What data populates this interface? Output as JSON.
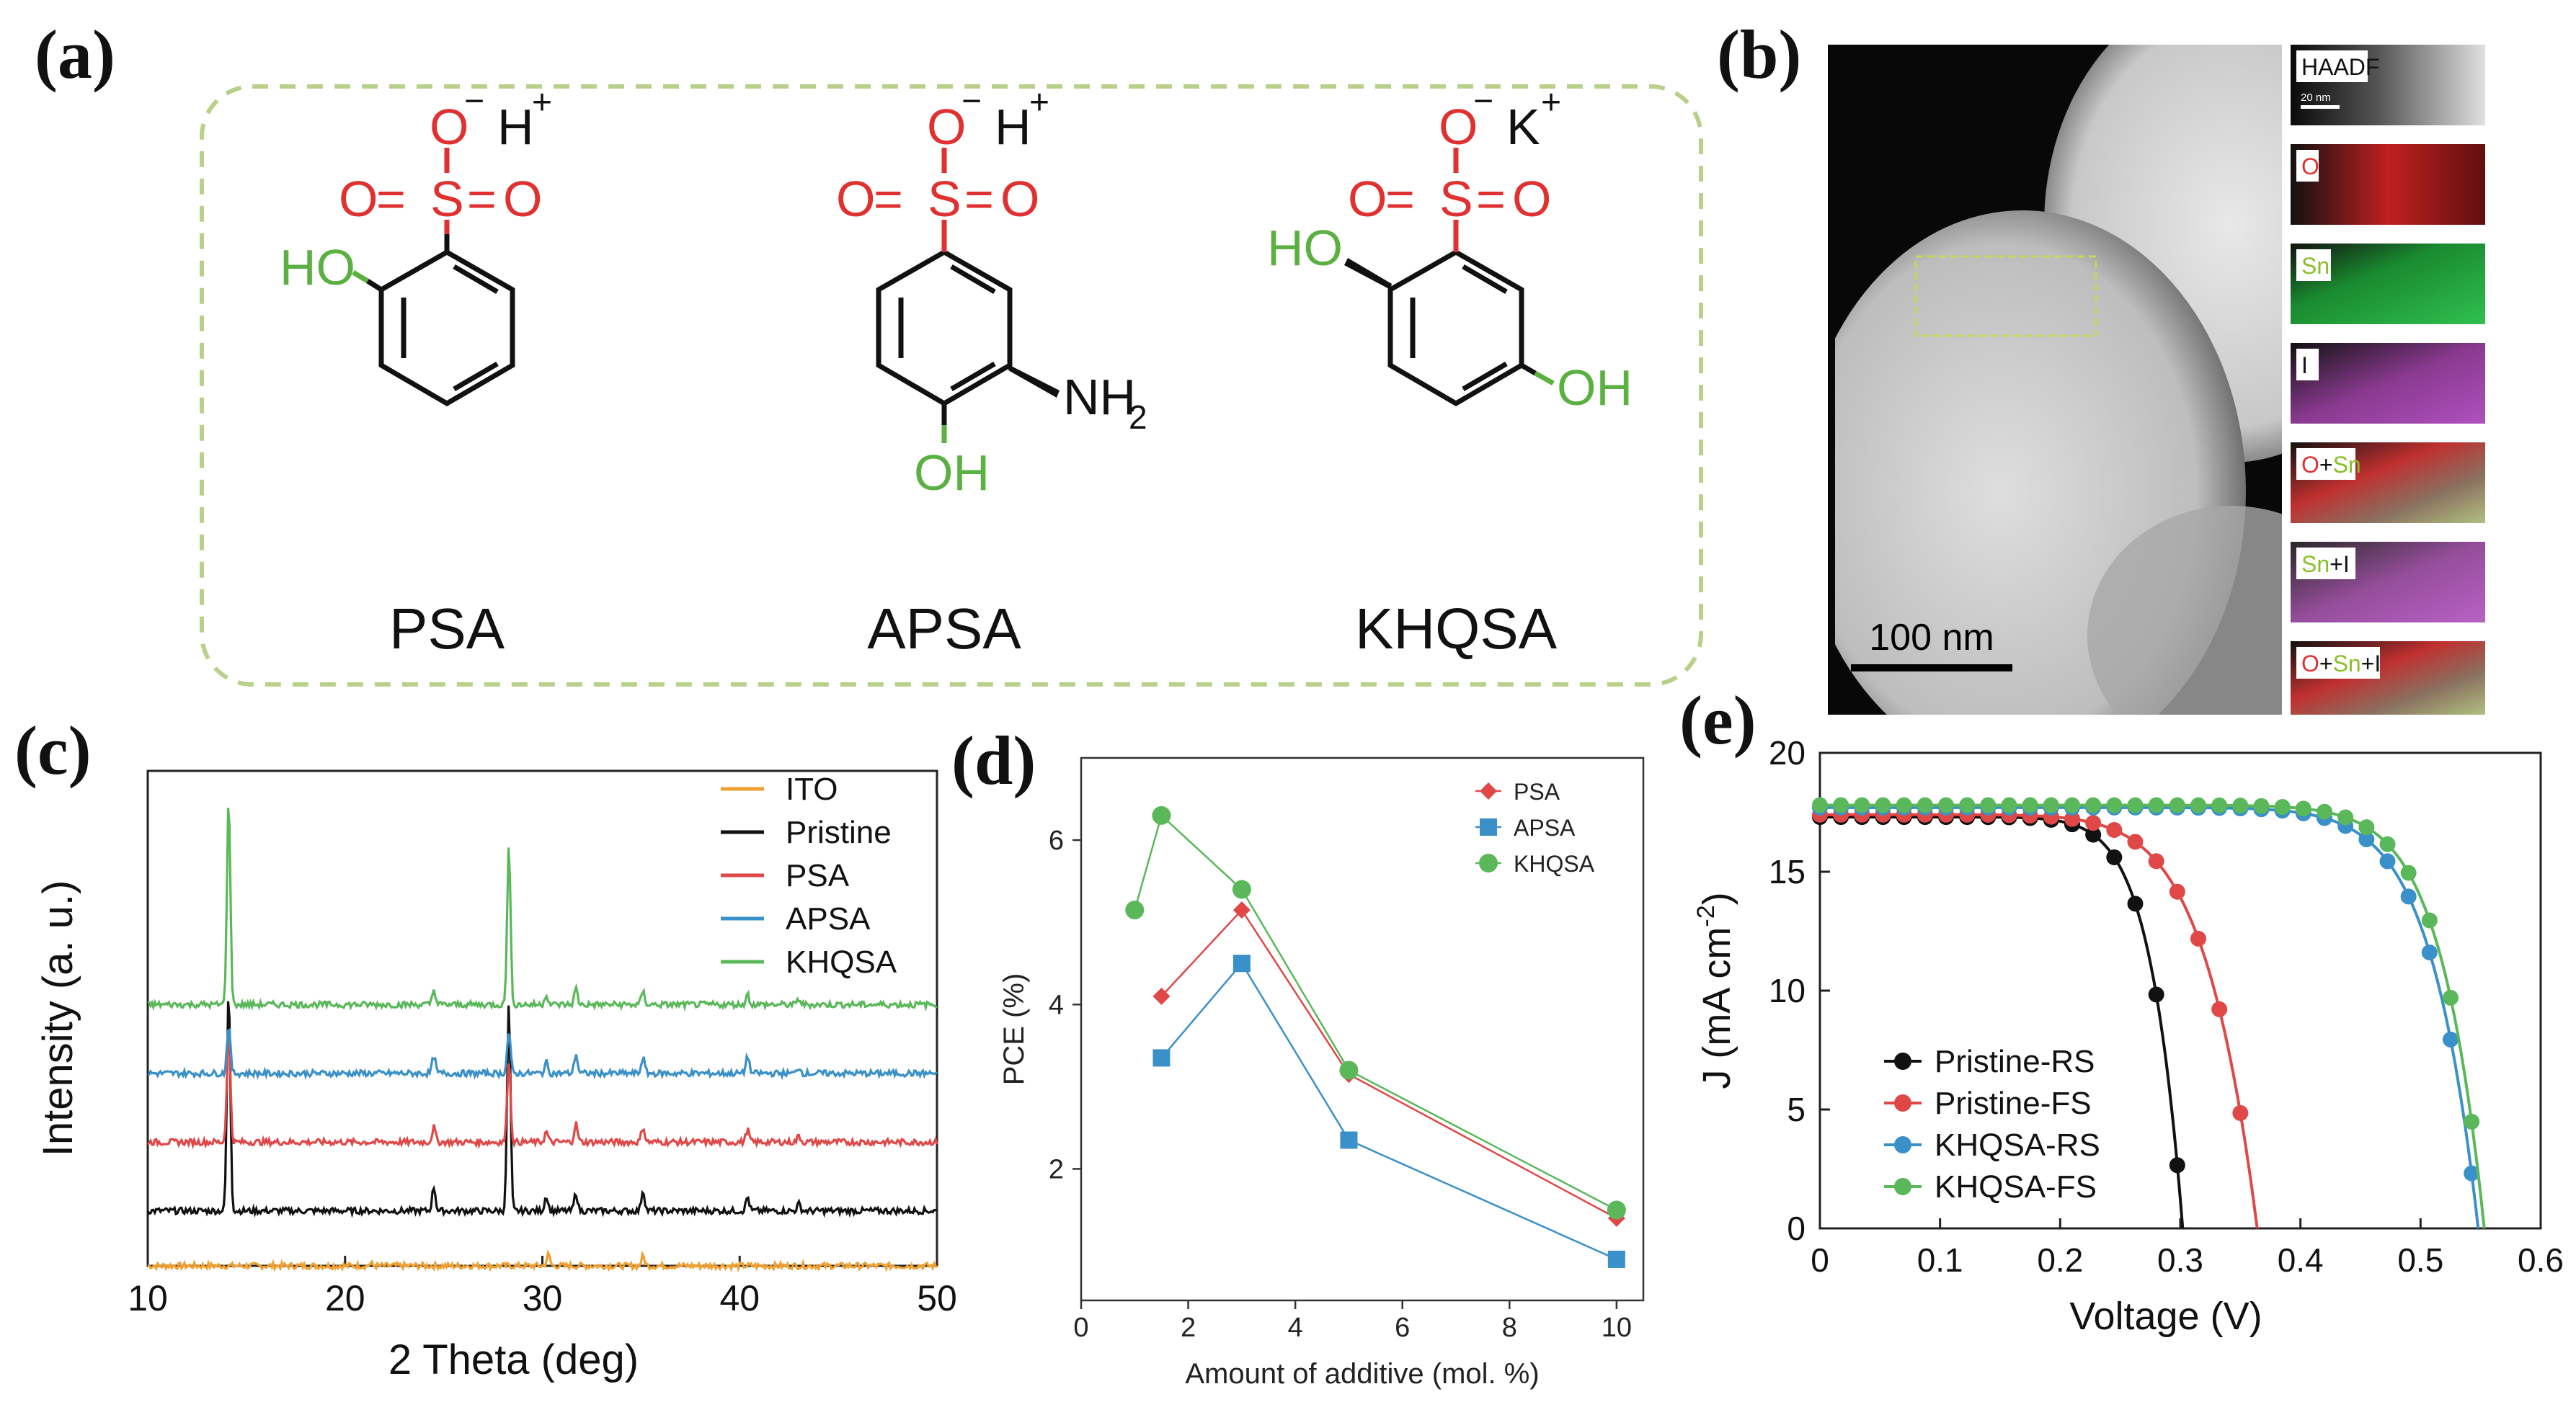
{
  "labels": {
    "a": "(a)",
    "b": "(b)",
    "c": "(c)",
    "d": "(d)",
    "e": "(e)"
  },
  "panel_a": {
    "molecules": [
      {
        "name": "PSA",
        "cation": "H",
        "cation_charge": "+",
        "substituents": [
          "HO"
        ]
      },
      {
        "name": "APSA",
        "cation": "H",
        "cation_charge": "+",
        "substituents": [
          "NH",
          "2",
          "OH"
        ]
      },
      {
        "name": "KHQSA",
        "cation": "K",
        "cation_charge": "+",
        "substituents": [
          "HO",
          "OH"
        ]
      }
    ],
    "sulfonate": {
      "o_minus": "O",
      "minus": "−",
      "o_left": "O",
      "eq1": "=",
      "s": "S",
      "eq2": "=",
      "o_right": "O"
    }
  },
  "panel_b": {
    "scale_bar": "100 nm",
    "inset_scale": "20 nm",
    "maps": [
      {
        "parts": [
          {
            "t": "HAADF",
            "c": "#111111"
          }
        ]
      },
      {
        "parts": [
          {
            "t": "O",
            "c": "#e03030"
          }
        ]
      },
      {
        "parts": [
          {
            "t": "Sn",
            "c": "#8abf2a"
          }
        ]
      },
      {
        "parts": [
          {
            "t": "I",
            "c": "#111111"
          }
        ]
      },
      {
        "parts": [
          {
            "t": "O",
            "c": "#e03030"
          },
          {
            "t": "+",
            "c": "#111111"
          },
          {
            "t": "Sn",
            "c": "#8abf2a"
          }
        ]
      },
      {
        "parts": [
          {
            "t": "Sn",
            "c": "#8abf2a"
          },
          {
            "t": "+I",
            "c": "#111111"
          }
        ]
      },
      {
        "parts": [
          {
            "t": "O",
            "c": "#e03030"
          },
          {
            "t": "+",
            "c": "#111111"
          },
          {
            "t": "Sn",
            "c": "#8abf2a"
          },
          {
            "t": "+I",
            "c": "#111111"
          }
        ]
      }
    ]
  },
  "chart_data": [
    {
      "id": "c",
      "type": "line",
      "xlabel": "2 Theta (deg)",
      "ylabel": "Intensity (a. u.)",
      "xlim": [
        10,
        50
      ],
      "xticks": [
        10,
        20,
        30,
        40,
        50
      ],
      "peak_positions": [
        14.1,
        24.5,
        28.3,
        30.2,
        31.7,
        35.1,
        40.4,
        43.0
      ],
      "series": [
        {
          "name": "ITO",
          "color": "#f0a030",
          "offset": 0,
          "peaks": [
            [
              30.3,
              1.6
            ],
            [
              35.1,
              1.4
            ],
            [
              21.3,
              0.3
            ]
          ]
        },
        {
          "name": "Pristine",
          "color": "#111111",
          "offset": 8,
          "peaks": [
            [
              14.1,
              32
            ],
            [
              24.5,
              3.5
            ],
            [
              28.3,
              30
            ],
            [
              30.2,
              2.2
            ],
            [
              31.7,
              2.6
            ],
            [
              35.1,
              3.0
            ],
            [
              40.4,
              2.0
            ],
            [
              43.0,
              1.0
            ]
          ]
        },
        {
          "name": "PSA",
          "color": "#e04848",
          "offset": 18,
          "peaks": [
            [
              14.1,
              17
            ],
            [
              24.5,
              2.2
            ],
            [
              28.3,
              12
            ],
            [
              30.2,
              1.5
            ],
            [
              31.7,
              2.7
            ],
            [
              35.1,
              2.2
            ],
            [
              40.4,
              1.8
            ],
            [
              43.0,
              0.9
            ]
          ]
        },
        {
          "name": "APSA",
          "color": "#3a90c8",
          "offset": 28,
          "peaks": [
            [
              14.1,
              7
            ],
            [
              24.5,
              2.5
            ],
            [
              28.3,
              6
            ],
            [
              30.2,
              1.6
            ],
            [
              31.7,
              2.8
            ],
            [
              35.1,
              2.3
            ],
            [
              40.4,
              2.6
            ],
            [
              43.0,
              0.9
            ]
          ]
        },
        {
          "name": "KHQSA",
          "color": "#5ab85a",
          "offset": 38,
          "peaks": [
            [
              14.1,
              30
            ],
            [
              24.5,
              2.2
            ],
            [
              28.3,
              23
            ],
            [
              30.2,
              1.5
            ],
            [
              31.7,
              2.3
            ],
            [
              35.1,
              1.9
            ],
            [
              40.4,
              1.5
            ],
            [
              43.0,
              0.8
            ]
          ]
        }
      ]
    },
    {
      "id": "d",
      "type": "line",
      "xlabel": "Amount of additive (mol. %)",
      "ylabel": "PCE (%)",
      "xlim": [
        0,
        10.5
      ],
      "ylim": [
        0.4,
        7.0
      ],
      "xticks": [
        0,
        2,
        4,
        6,
        8,
        10
      ],
      "yticks": [
        2,
        4,
        6
      ],
      "series": [
        {
          "name": "PSA",
          "color": "#e04848",
          "marker": "diamond",
          "x": [
            1.5,
            3,
            5,
            10
          ],
          "y": [
            4.1,
            5.15,
            3.15,
            1.4
          ]
        },
        {
          "name": "APSA",
          "color": "#3a90c8",
          "marker": "square",
          "x": [
            1.5,
            3,
            5,
            10
          ],
          "y": [
            3.35,
            4.5,
            2.35,
            0.9
          ]
        },
        {
          "name": "KHQSA",
          "color": "#5ab85a",
          "marker": "circle",
          "x": [
            1,
            1.5,
            3,
            5,
            10
          ],
          "y": [
            5.15,
            6.3,
            5.4,
            3.2,
            1.5
          ]
        }
      ]
    },
    {
      "id": "e",
      "type": "line",
      "xlabel": "Voltage (V)",
      "ylabel_main": "J (mA cm",
      "ylabel_sup": "-2",
      "ylabel_end": ")",
      "xlim": [
        0,
        0.6
      ],
      "ylim": [
        0,
        20
      ],
      "xticks": [
        "0",
        "0.1",
        "0.2",
        "0.3",
        "0.4",
        "0.5",
        "0.6"
      ],
      "yticks": [
        "0",
        "5",
        "10",
        "15",
        "20"
      ],
      "series": [
        {
          "name": "Pristine-RS",
          "color": "#111111",
          "jsc": 17.3,
          "voc": 0.302,
          "n": 0.75
        },
        {
          "name": "Pristine-FS",
          "color": "#e04848",
          "jsc": 17.4,
          "voc": 0.364,
          "n": 1.0
        },
        {
          "name": "KHQSA-RS",
          "color": "#3a90c8",
          "jsc": 17.7,
          "voc": 0.548,
          "n": 0.6
        },
        {
          "name": "KHQSA-FS",
          "color": "#5ab85a",
          "jsc": 17.8,
          "voc": 0.553,
          "n": 0.55
        }
      ]
    }
  ]
}
